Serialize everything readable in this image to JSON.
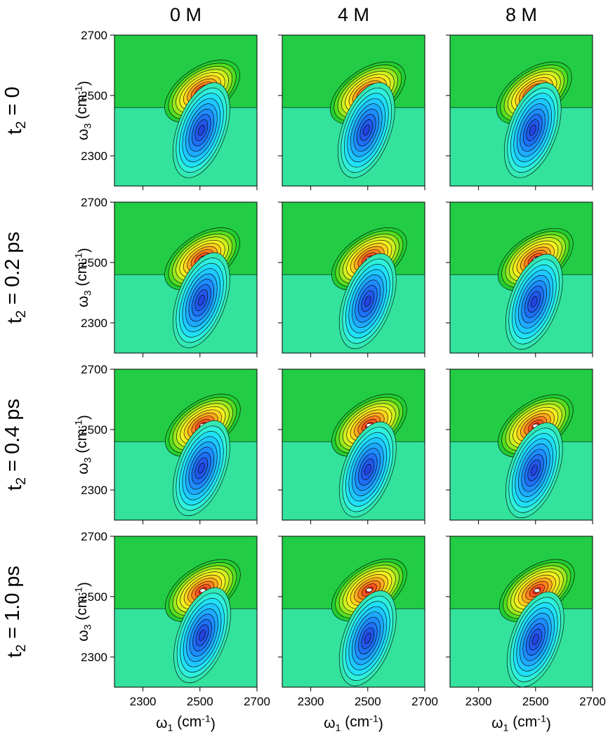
{
  "chart_data": [
    {
      "type": "contour",
      "title": "0 M",
      "row_label": [
        "t",
        "2",
        " = 0"
      ],
      "ylabel": [
        "ω",
        "3",
        " (cm",
        "-1",
        ")"
      ],
      "xlim": [
        2200,
        2700
      ],
      "ylim": [
        2200,
        2700
      ],
      "xticks": [
        2300,
        2500,
        2700
      ],
      "yticks": [
        2300,
        2500,
        2700
      ],
      "peaks": [
        {
          "x": 2508,
          "y": 2514,
          "sign": 1
        },
        {
          "x": 2505,
          "y": 2385,
          "sign": -1
        }
      ]
    },
    {
      "type": "contour",
      "title": "4 M",
      "xlim": [
        2200,
        2700
      ],
      "ylim": [
        2200,
        2700
      ],
      "xticks": [
        2300,
        2500,
        2700
      ],
      "yticks": [
        2300,
        2500,
        2700
      ],
      "peaks": [
        {
          "x": 2500,
          "y": 2508,
          "sign": 1
        },
        {
          "x": 2495,
          "y": 2385,
          "sign": -1
        }
      ]
    },
    {
      "type": "contour",
      "title": "8 M",
      "xlim": [
        2200,
        2700
      ],
      "ylim": [
        2200,
        2700
      ],
      "xticks": [
        2300,
        2500,
        2700
      ],
      "yticks": [
        2300,
        2500,
        2700
      ],
      "peaks": [
        {
          "x": 2495,
          "y": 2508,
          "sign": 1
        },
        {
          "x": 2490,
          "y": 2385,
          "sign": -1
        }
      ]
    },
    {
      "type": "contour",
      "row_label": [
        "t",
        "2",
        " = 0.2 ps"
      ],
      "ylabel": [
        "ω",
        "3",
        " (cm",
        "-1",
        ")"
      ],
      "xlim": [
        2200,
        2700
      ],
      "ylim": [
        2200,
        2700
      ],
      "xticks": [
        2300,
        2500,
        2700
      ],
      "yticks": [
        2300,
        2500,
        2700
      ],
      "peaks": [
        {
          "x": 2508,
          "y": 2512,
          "sign": 1
        },
        {
          "x": 2505,
          "y": 2375,
          "sign": -1
        }
      ]
    },
    {
      "type": "contour",
      "xlim": [
        2200,
        2700
      ],
      "ylim": [
        2200,
        2700
      ],
      "xticks": [
        2300,
        2500,
        2700
      ],
      "yticks": [
        2300,
        2500,
        2700
      ],
      "peaks": [
        {
          "x": 2505,
          "y": 2512,
          "sign": 1
        },
        {
          "x": 2500,
          "y": 2372,
          "sign": -1
        }
      ]
    },
    {
      "type": "contour",
      "xlim": [
        2200,
        2700
      ],
      "ylim": [
        2200,
        2700
      ],
      "xticks": [
        2300,
        2500,
        2700
      ],
      "yticks": [
        2300,
        2500,
        2700
      ],
      "peaks": [
        {
          "x": 2500,
          "y": 2510,
          "sign": 1
        },
        {
          "x": 2495,
          "y": 2370,
          "sign": -1
        }
      ]
    },
    {
      "type": "contour",
      "row_label": [
        "t",
        "2",
        " = 0.4 ps"
      ],
      "ylabel": [
        "ω",
        "3",
        " (cm",
        "-1",
        ")"
      ],
      "xlim": [
        2200,
        2700
      ],
      "ylim": [
        2200,
        2700
      ],
      "xticks": [
        2300,
        2500,
        2700
      ],
      "yticks": [
        2300,
        2500,
        2700
      ],
      "peaks": [
        {
          "x": 2510,
          "y": 2514,
          "sign": 1
        },
        {
          "x": 2505,
          "y": 2372,
          "sign": -1
        }
      ]
    },
    {
      "type": "contour",
      "xlim": [
        2200,
        2700
      ],
      "ylim": [
        2200,
        2700
      ],
      "xticks": [
        2300,
        2500,
        2700
      ],
      "yticks": [
        2300,
        2500,
        2700
      ],
      "peaks": [
        {
          "x": 2505,
          "y": 2514,
          "sign": 1
        },
        {
          "x": 2500,
          "y": 2368,
          "sign": -1
        }
      ]
    },
    {
      "type": "contour",
      "xlim": [
        2200,
        2700
      ],
      "ylim": [
        2200,
        2700
      ],
      "xticks": [
        2300,
        2500,
        2700
      ],
      "yticks": [
        2300,
        2500,
        2700
      ],
      "peaks": [
        {
          "x": 2500,
          "y": 2512,
          "sign": 1
        },
        {
          "x": 2495,
          "y": 2365,
          "sign": -1
        }
      ]
    },
    {
      "type": "contour",
      "row_label": [
        "t",
        "2",
        " = 1.0 ps"
      ],
      "ylabel": [
        "ω",
        "3",
        " (cm",
        "-1",
        ")"
      ],
      "xlabel": [
        "ω",
        "1",
        " (cm",
        "-1",
        ")"
      ],
      "xlim": [
        2200,
        2700
      ],
      "ylim": [
        2200,
        2700
      ],
      "xticks": [
        2300,
        2500,
        2700
      ],
      "yticks": [
        2300,
        2500,
        2700
      ],
      "peaks": [
        {
          "x": 2510,
          "y": 2520,
          "sign": 1
        },
        {
          "x": 2508,
          "y": 2372,
          "sign": -1
        }
      ]
    },
    {
      "type": "contour",
      "xlabel": [
        "ω",
        "1",
        " (cm",
        "-1",
        ")"
      ],
      "xlim": [
        2200,
        2700
      ],
      "ylim": [
        2200,
        2700
      ],
      "xticks": [
        2300,
        2500,
        2700
      ],
      "yticks": [
        2300,
        2500,
        2700
      ],
      "peaks": [
        {
          "x": 2505,
          "y": 2522,
          "sign": 1
        },
        {
          "x": 2500,
          "y": 2362,
          "sign": -1
        }
      ]
    },
    {
      "type": "contour",
      "xlabel": [
        "ω",
        "1",
        " (cm",
        "-1",
        ")"
      ],
      "xlim": [
        2200,
        2700
      ],
      "ylim": [
        2200,
        2700
      ],
      "xticks": [
        2300,
        2500,
        2700
      ],
      "yticks": [
        2300,
        2500,
        2700
      ],
      "peaks": [
        {
          "x": 2505,
          "y": 2520,
          "sign": 1
        },
        {
          "x": 2500,
          "y": 2358,
          "sign": -1
        }
      ]
    }
  ]
}
